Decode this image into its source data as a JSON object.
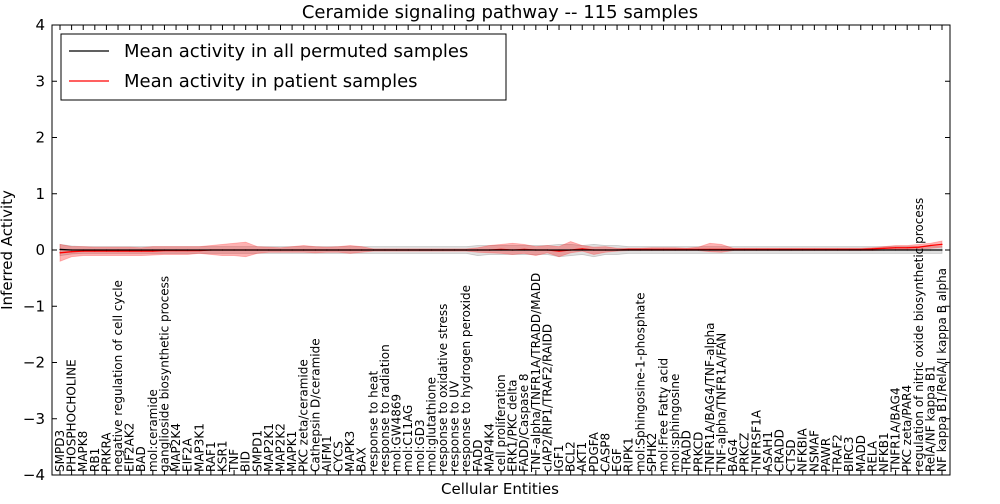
{
  "chart_data": {
    "type": "line",
    "title": "Ceramide signaling pathway -- 115 samples",
    "xlabel": "Cellular Entities",
    "ylabel": "Inferred Activity",
    "ylim": [
      -4,
      4
    ],
    "yticks": [
      -4,
      -3,
      -2,
      -1,
      0,
      1,
      2,
      3,
      4
    ],
    "ytick_labels": [
      "−4",
      "−3",
      "−2",
      "−1",
      "0",
      "1",
      "2",
      "3",
      "4"
    ],
    "legend_position": "top-left",
    "categories": [
      "SMPD3",
      "PHOSPHOCHOLINE",
      "MAPK8",
      "RB1",
      "PRKRA",
      "negative regulation of cell cycle",
      "EIF2AK2",
      "BAD",
      "mol:ceramide",
      "ganglioside biosynthetic process",
      "MAP2K4",
      "EIF2A",
      "MAP3K1",
      "RAF1",
      "KSR1",
      "TNF",
      "BID",
      "SMPD1",
      "MAP2K1",
      "MAP2K2",
      "MAPK1",
      "PKC zeta/ceramide",
      "Cathepsin D/ceramide",
      "AIFM1",
      "CYCS",
      "MAPK3",
      "BAX",
      "response to heat",
      "response to radiation",
      "mol:GW4869",
      "mol:C11AG",
      "mol:GD3",
      "mol:glutathione",
      "response to oxidative stress",
      "response to UV",
      "response to hydrogen peroxide",
      "FADD",
      "MAP4K4",
      "cell proliferation",
      "ERK1/PKC delta",
      "FADD/Caspase 8",
      "TNF-alpha/TNFR1A/TRADD/MADD",
      "cIAP2/RIP1/TRAF2/RAIDD",
      "IGF1",
      "BCL2",
      "AKT1",
      "PDGFA",
      "CASP8",
      "EGF",
      "RIPK1",
      "mol:Sphingosine-1-phosphate",
      "SPHK2",
      "mol:Free Fatty acid",
      "mol:sphingosine",
      "TRADD",
      "PRKCD",
      "TNFR1A/BAG4/TNF-alpha",
      "TNF-alpha/TNFR1A/FAN",
      "BAG4",
      "PRKCZ",
      "TNFRSF1A",
      "ASAH1",
      "CRADD",
      "CTSD",
      "NFKBIA",
      "NSMAF",
      "PAWR",
      "TRAF2",
      "BIRC3",
      "MADD",
      "RELA",
      "NFKB1",
      "TNFR1A/BAG4",
      "PKC zeta/PAR4",
      "regulation of nitric oxide biosynthetic process",
      "RelA/NF kappa B1",
      "NF kappa B1/RelA/I kappa B alpha"
    ],
    "series": [
      {
        "name": "Mean activity in all permuted samples",
        "color": "#000000",
        "values": [
          0.01,
          0.0,
          0.0,
          0.0,
          0.0,
          0.0,
          0.0,
          0.0,
          0.0,
          0.0,
          0.0,
          0.0,
          0.0,
          0.0,
          0.0,
          0.0,
          0.0,
          0.0,
          0.0,
          0.0,
          0.0,
          0.0,
          0.0,
          0.0,
          0.0,
          0.0,
          0.0,
          0.0,
          0.0,
          0.0,
          0.0,
          0.0,
          0.0,
          0.0,
          0.0,
          0.0,
          0.0,
          0.0,
          0.0,
          0.0,
          0.0,
          0.0,
          0.0,
          0.0,
          0.0,
          0.0,
          0.0,
          0.0,
          0.0,
          0.0,
          0.0,
          0.0,
          0.0,
          0.0,
          0.0,
          0.0,
          0.0,
          0.0,
          0.0,
          0.0,
          0.0,
          0.0,
          0.0,
          0.0,
          0.0,
          0.0,
          0.0,
          0.0,
          0.0,
          0.0,
          0.0,
          0.0,
          0.0,
          0.0,
          0.0,
          0.0,
          0.0
        ],
        "band_lower": [
          -0.1,
          -0.07,
          -0.06,
          -0.06,
          -0.06,
          -0.06,
          -0.06,
          -0.06,
          -0.06,
          -0.06,
          -0.06,
          -0.06,
          -0.06,
          -0.06,
          -0.06,
          -0.06,
          -0.06,
          -0.06,
          -0.06,
          -0.06,
          -0.06,
          -0.06,
          -0.06,
          -0.06,
          -0.06,
          -0.06,
          -0.06,
          -0.06,
          -0.06,
          -0.06,
          -0.06,
          -0.06,
          -0.06,
          -0.06,
          -0.06,
          -0.06,
          -0.1,
          -0.08,
          -0.08,
          -0.08,
          -0.08,
          -0.08,
          -0.08,
          -0.12,
          -0.1,
          -0.08,
          -0.12,
          -0.08,
          -0.08,
          -0.06,
          -0.06,
          -0.06,
          -0.06,
          -0.06,
          -0.06,
          -0.06,
          -0.06,
          -0.06,
          -0.06,
          -0.06,
          -0.06,
          -0.06,
          -0.06,
          -0.06,
          -0.06,
          -0.06,
          -0.06,
          -0.06,
          -0.06,
          -0.06,
          -0.06,
          -0.06,
          -0.06,
          -0.06,
          -0.06,
          -0.06,
          -0.06
        ],
        "band_upper": [
          0.1,
          0.07,
          0.06,
          0.06,
          0.06,
          0.06,
          0.06,
          0.06,
          0.06,
          0.06,
          0.06,
          0.06,
          0.06,
          0.06,
          0.06,
          0.06,
          0.06,
          0.06,
          0.06,
          0.06,
          0.06,
          0.06,
          0.06,
          0.06,
          0.06,
          0.06,
          0.06,
          0.06,
          0.06,
          0.06,
          0.06,
          0.06,
          0.06,
          0.06,
          0.06,
          0.06,
          0.08,
          0.08,
          0.08,
          0.08,
          0.08,
          0.08,
          0.08,
          0.1,
          0.1,
          0.08,
          0.1,
          0.08,
          0.08,
          0.06,
          0.06,
          0.06,
          0.06,
          0.06,
          0.06,
          0.06,
          0.06,
          0.06,
          0.06,
          0.06,
          0.06,
          0.06,
          0.06,
          0.06,
          0.06,
          0.06,
          0.06,
          0.06,
          0.06,
          0.06,
          0.06,
          0.06,
          0.06,
          0.06,
          0.06,
          0.06,
          0.06
        ]
      },
      {
        "name": "Mean activity in patient samples",
        "color": "#ff0000",
        "values": [
          -0.05,
          -0.03,
          -0.02,
          -0.02,
          -0.02,
          -0.02,
          -0.02,
          -0.02,
          -0.02,
          -0.01,
          -0.01,
          -0.01,
          -0.01,
          0.0,
          0.0,
          0.0,
          0.0,
          0.0,
          0.0,
          0.0,
          0.0,
          0.0,
          0.0,
          0.0,
          0.0,
          0.0,
          0.0,
          0.0,
          0.0,
          0.0,
          0.0,
          0.0,
          0.0,
          0.0,
          0.0,
          0.0,
          0.0,
          0.0,
          0.01,
          0.0,
          0.01,
          0.0,
          0.0,
          -0.02,
          0.0,
          0.02,
          0.0,
          0.0,
          0.0,
          0.01,
          0.01,
          0.01,
          0.01,
          0.01,
          0.01,
          0.01,
          0.01,
          0.01,
          0.01,
          0.01,
          0.01,
          0.01,
          0.01,
          0.01,
          0.01,
          0.01,
          0.01,
          0.01,
          0.01,
          0.01,
          0.02,
          0.03,
          0.04,
          0.04,
          0.05,
          0.08,
          0.1
        ],
        "band_lower": [
          -0.2,
          -0.12,
          -0.1,
          -0.1,
          -0.1,
          -0.1,
          -0.1,
          -0.1,
          -0.09,
          -0.08,
          -0.08,
          -0.08,
          -0.06,
          -0.08,
          -0.1,
          -0.1,
          -0.12,
          -0.06,
          -0.04,
          -0.04,
          -0.04,
          -0.04,
          -0.05,
          -0.04,
          -0.04,
          -0.06,
          -0.04,
          -0.02,
          -0.02,
          -0.02,
          -0.02,
          -0.02,
          -0.02,
          -0.02,
          -0.02,
          -0.02,
          -0.04,
          -0.05,
          -0.06,
          -0.08,
          -0.06,
          -0.1,
          -0.05,
          -0.12,
          -0.05,
          -0.02,
          -0.08,
          -0.04,
          -0.02,
          -0.01,
          -0.01,
          -0.01,
          -0.01,
          -0.01,
          -0.01,
          -0.01,
          -0.03,
          -0.04,
          -0.01,
          -0.01,
          -0.01,
          -0.01,
          -0.01,
          -0.01,
          -0.01,
          -0.01,
          -0.01,
          -0.01,
          -0.01,
          -0.01,
          -0.01,
          0.0,
          0.01,
          0.01,
          0.02,
          0.03,
          0.05
        ],
        "band_upper": [
          0.1,
          0.06,
          0.06,
          0.05,
          0.05,
          0.05,
          0.05,
          0.04,
          0.06,
          0.06,
          0.06,
          0.06,
          0.06,
          0.08,
          0.1,
          0.12,
          0.14,
          0.06,
          0.05,
          0.04,
          0.06,
          0.08,
          0.06,
          0.05,
          0.06,
          0.08,
          0.06,
          0.02,
          0.02,
          0.02,
          0.02,
          0.02,
          0.02,
          0.02,
          0.02,
          0.02,
          0.04,
          0.08,
          0.1,
          0.12,
          0.1,
          0.06,
          0.08,
          0.06,
          0.15,
          0.08,
          0.05,
          0.06,
          0.03,
          0.03,
          0.03,
          0.04,
          0.04,
          0.04,
          0.03,
          0.05,
          0.12,
          0.1,
          0.03,
          0.03,
          0.03,
          0.03,
          0.03,
          0.03,
          0.03,
          0.03,
          0.03,
          0.03,
          0.03,
          0.03,
          0.04,
          0.06,
          0.08,
          0.08,
          0.1,
          0.12,
          0.16
        ]
      }
    ]
  }
}
